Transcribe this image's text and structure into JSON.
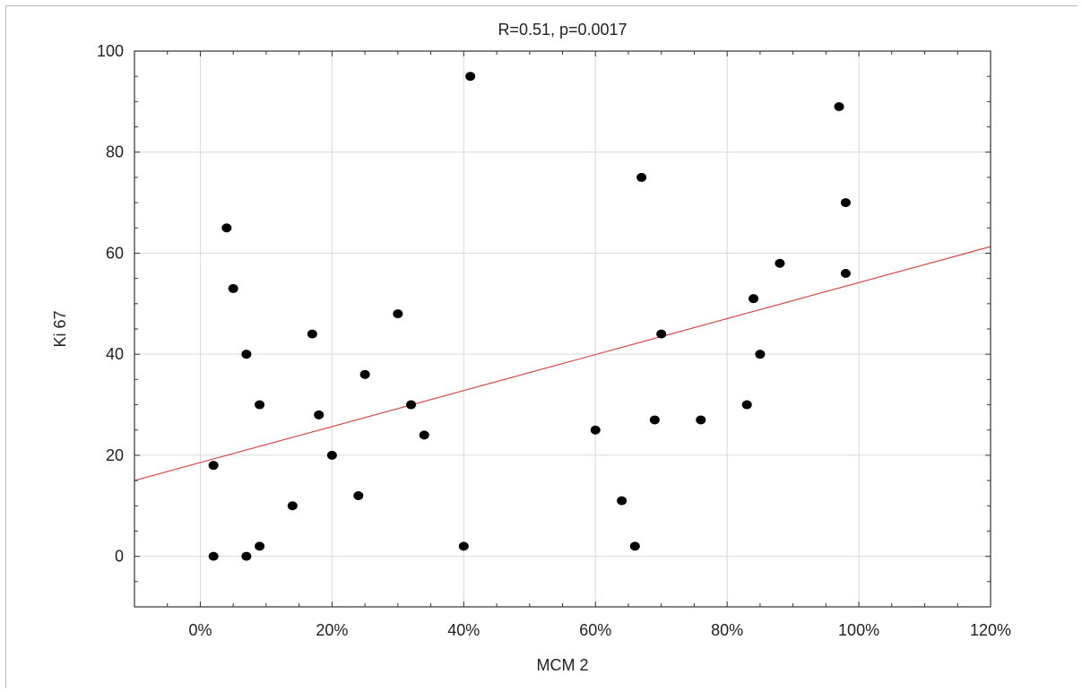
{
  "chart_data": {
    "type": "scatter",
    "title": "R=0.51, p=0.0017",
    "xlabel": "MCM 2",
    "ylabel": "Ki 67",
    "xlim": [
      -0.1,
      1.2
    ],
    "ylim": [
      -10,
      100
    ],
    "x_ticks": [
      0,
      0.2,
      0.4,
      0.6,
      0.8,
      1.0,
      1.2
    ],
    "x_tick_labels": [
      "0%",
      "20%",
      "40%",
      "60%",
      "80%",
      "100%",
      "120%"
    ],
    "y_ticks": [
      0,
      20,
      40,
      60,
      80,
      100
    ],
    "y_tick_labels": [
      "0",
      "20",
      "40",
      "60",
      "80",
      "100"
    ],
    "grid": true,
    "points": [
      {
        "x": 0.02,
        "y": 18
      },
      {
        "x": 0.02,
        "y": 0
      },
      {
        "x": 0.04,
        "y": 65
      },
      {
        "x": 0.05,
        "y": 53
      },
      {
        "x": 0.07,
        "y": 40
      },
      {
        "x": 0.07,
        "y": 0
      },
      {
        "x": 0.09,
        "y": 30
      },
      {
        "x": 0.09,
        "y": 2
      },
      {
        "x": 0.14,
        "y": 10
      },
      {
        "x": 0.17,
        "y": 44
      },
      {
        "x": 0.18,
        "y": 28
      },
      {
        "x": 0.2,
        "y": 20
      },
      {
        "x": 0.24,
        "y": 12
      },
      {
        "x": 0.25,
        "y": 36
      },
      {
        "x": 0.3,
        "y": 48
      },
      {
        "x": 0.32,
        "y": 30
      },
      {
        "x": 0.34,
        "y": 24
      },
      {
        "x": 0.4,
        "y": 2
      },
      {
        "x": 0.41,
        "y": 95
      },
      {
        "x": 0.6,
        "y": 25
      },
      {
        "x": 0.64,
        "y": 11
      },
      {
        "x": 0.66,
        "y": 2
      },
      {
        "x": 0.67,
        "y": 75
      },
      {
        "x": 0.69,
        "y": 27
      },
      {
        "x": 0.7,
        "y": 44
      },
      {
        "x": 0.76,
        "y": 27
      },
      {
        "x": 0.83,
        "y": 30
      },
      {
        "x": 0.84,
        "y": 51
      },
      {
        "x": 0.85,
        "y": 40
      },
      {
        "x": 0.88,
        "y": 58
      },
      {
        "x": 0.97,
        "y": 89
      },
      {
        "x": 0.98,
        "y": 70
      },
      {
        "x": 0.98,
        "y": 56
      }
    ],
    "regression_line": {
      "x": [
        -0.1,
        1.2
      ],
      "y": [
        15,
        61.3
      ]
    },
    "colors": {
      "points": "#000000",
      "regression": "#d44a4a",
      "grid": "#d9d9d9",
      "axes": "#333333"
    }
  }
}
